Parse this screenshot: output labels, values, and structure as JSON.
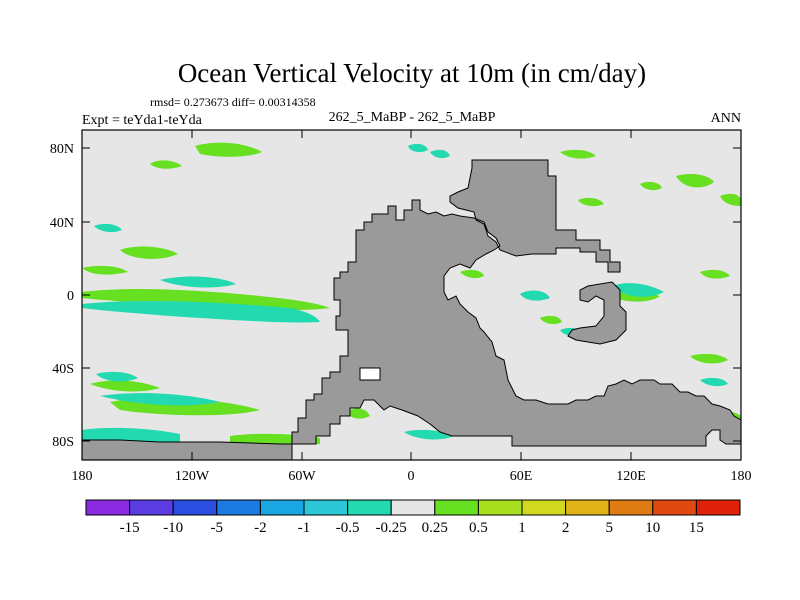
{
  "title": "Ocean Vertical Velocity at 10m (in cm/day)",
  "stats_text": "rmsd= 0.273673 diff= 0.00314358",
  "left_label": "Expt = teYda1-teYda",
  "center_label": "262_5_MaBP - 262_5_MaBP",
  "right_label": "ANN",
  "lat_ticks": [
    "80N",
    "40N",
    "0",
    "40S",
    "80S"
  ],
  "lon_ticks": [
    "180",
    "120W",
    "60W",
    "0",
    "60E",
    "120E",
    "180"
  ],
  "colorbar": {
    "labels": [
      "-15",
      "-10",
      "-5",
      "-2",
      "-1",
      "-0.5",
      "-0.25",
      "0.25",
      "0.5",
      "1",
      "2",
      "5",
      "10",
      "15"
    ],
    "colors": [
      "#8a2be2",
      "#5a3ce0",
      "#2a4ee0",
      "#1c7ae0",
      "#1aa6e0",
      "#2cc8d8",
      "#22d9b0",
      "#e6e6e6",
      "#66e020",
      "#a8e020",
      "#d0d820",
      "#e0b418",
      "#e07c14",
      "#e04a10",
      "#e02008"
    ]
  },
  "colors": {
    "land": "#9a9a9a",
    "ocean": "#e6e6e6"
  }
}
